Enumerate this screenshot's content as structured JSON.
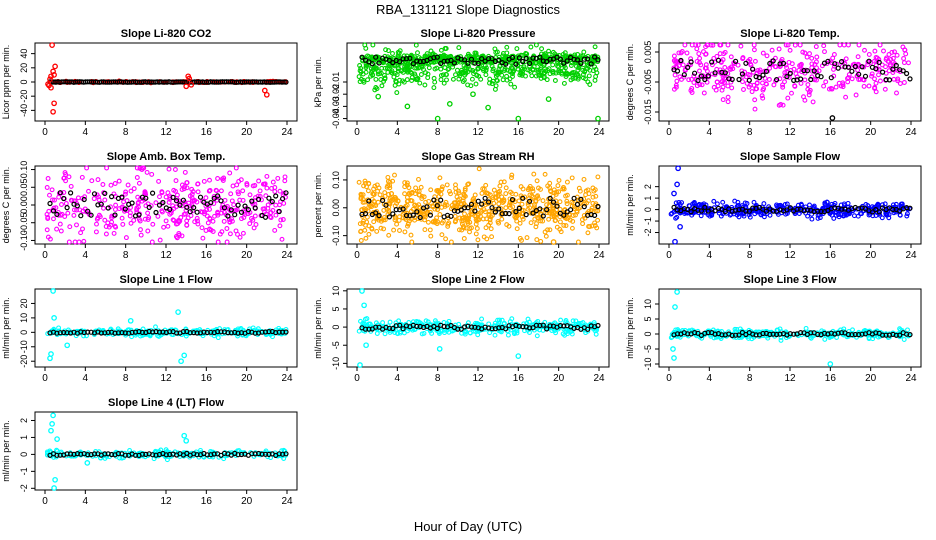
{
  "figure": {
    "title": "RBA_131121  Slope Diagnostics",
    "xlabel": "Hour of Day (UTC)"
  },
  "chart_data": [
    {
      "type": "scatter",
      "title": "Slope Li-820 CO2",
      "ylabel": "Licor ppm per min.",
      "color": "#ff0000",
      "xlim": [
        0,
        24
      ],
      "ylim": [
        -55,
        55
      ],
      "xticks": [
        "0",
        "4",
        "8",
        "12",
        "16",
        "20",
        "24"
      ],
      "yticks": [
        {
          "v": -40,
          "label": "-40"
        },
        {
          "v": -20,
          "label": "-20"
        },
        {
          "v": 0,
          "label": "0"
        },
        {
          "v": 20,
          "label": "20"
        },
        {
          "v": 40,
          "label": "40"
        }
      ],
      "series": [
        {
          "name": "slopes",
          "color": "#ff0000",
          "x": [
            0.3,
            0.4,
            0.5,
            0.6,
            0.7,
            0.8,
            0.9,
            1.0,
            0.8,
            0.9,
            0.6,
            14.0,
            14.2,
            14.3,
            14.5,
            21.8,
            22.0
          ],
          "y": [
            -3,
            -5,
            4,
            8,
            52,
            -42,
            -30,
            22,
            15,
            10,
            -8,
            -6,
            8,
            5,
            -4,
            -12,
            -18
          ]
        }
      ]
    },
    {
      "type": "scatter",
      "title": "Slope Li-820 Pressure",
      "ylabel": "kPa per min.",
      "color": "#00d000",
      "xlim": [
        0,
        24
      ],
      "ylim": [
        -0.042,
        0.022
      ],
      "xticks": [
        "0",
        "4",
        "8",
        "12",
        "16",
        "20",
        "24"
      ],
      "yticks": [
        {
          "v": -0.04,
          "label": "-0.04"
        },
        {
          "v": -0.03,
          "label": "-0.03"
        },
        {
          "v": -0.02,
          "label": "-0.02"
        },
        {
          "v": -0.01,
          "label": "-0.01"
        }
      ],
      "series": [
        {
          "name": "outliers",
          "color": "#00d000",
          "x": [
            2.1,
            5.0,
            8.0,
            9.2,
            11.5,
            13.0,
            16.0,
            19.0,
            23.9
          ],
          "y": [
            -0.022,
            -0.03,
            -0.04,
            -0.028,
            -0.02,
            -0.031,
            -0.04,
            -0.024,
            -0.04
          ]
        }
      ]
    },
    {
      "type": "scatter",
      "title": "Slope Li-820 Temp.",
      "ylabel": "degrees C per min.",
      "color": "#ff00ff",
      "xlim": [
        0,
        24
      ],
      "ylim": [
        -0.018,
        0.008
      ],
      "xticks": [
        "0",
        "4",
        "8",
        "12",
        "16",
        "20",
        "24"
      ],
      "yticks": [
        {
          "v": -0.015,
          "label": "-0.015"
        },
        {
          "v": -0.005,
          "label": "-0.005"
        },
        {
          "v": 0.005,
          "label": "0.005"
        }
      ],
      "series": [
        {
          "name": "outliers",
          "color": "#000000",
          "x": [
            16.2
          ],
          "y": [
            -0.017
          ]
        }
      ]
    },
    {
      "type": "scatter",
      "title": "Slope Amb. Box Temp.",
      "ylabel": "degrees C per min.",
      "color": "#ff00ff",
      "xlim": [
        0,
        24
      ],
      "ylim": [
        -0.11,
        0.11
      ],
      "xticks": [
        "0",
        "4",
        "8",
        "12",
        "16",
        "20",
        "24"
      ],
      "yticks": [
        {
          "v": -0.1,
          "label": "-0.10"
        },
        {
          "v": -0.05,
          "label": "-0.05"
        },
        {
          "v": 0,
          "label": "0.00"
        },
        {
          "v": 0.05,
          "label": "0.05"
        },
        {
          "v": 0.1,
          "label": "0.10"
        }
      ],
      "series": []
    },
    {
      "type": "scatter",
      "title": "Slope Gas Stream RH",
      "ylabel": "percent per min.",
      "color": "#ffa500",
      "xlim": [
        0,
        24
      ],
      "ylim": [
        -0.13,
        0.15
      ],
      "xticks": [
        "0",
        "4",
        "8",
        "12",
        "16",
        "20",
        "24"
      ],
      "yticks": [
        {
          "v": -0.1,
          "label": "-0.10"
        },
        {
          "v": 0,
          "label": "0.00"
        },
        {
          "v": 0.1,
          "label": "0.10"
        }
      ],
      "series": [
        {
          "name": "outliers",
          "color": "#ffa500",
          "x": [
            19.5
          ],
          "y": [
            -0.13
          ]
        }
      ]
    },
    {
      "type": "scatter",
      "title": "Slope Sample Flow",
      "ylabel": "ml/min per min.",
      "color": "#0000ff",
      "xlim": [
        0,
        24
      ],
      "ylim": [
        -3.0,
        3.8
      ],
      "xticks": [
        "0",
        "4",
        "8",
        "12",
        "16",
        "20",
        "24"
      ],
      "yticks": [
        {
          "v": -2,
          "label": "-2"
        },
        {
          "v": -1,
          "label": "-1"
        },
        {
          "v": 0,
          "label": "0"
        },
        {
          "v": 1,
          "label": "1"
        },
        {
          "v": 2,
          "label": "2"
        }
      ],
      "series": [
        {
          "name": "outliers",
          "color": "#0000ff",
          "x": [
            0.9,
            0.6,
            0.8,
            1.1,
            0.5
          ],
          "y": [
            3.6,
            -2.8,
            2.2,
            -1.5,
            1.4
          ]
        }
      ]
    },
    {
      "type": "scatter",
      "title": "Slope Line 1 Flow",
      "ylabel": "ml/min per min.",
      "color": "#00ffff",
      "xlim": [
        0,
        24
      ],
      "ylim": [
        -24,
        30
      ],
      "xticks": [
        "0",
        "4",
        "8",
        "12",
        "16",
        "20",
        "24"
      ],
      "yticks": [
        {
          "v": -20,
          "label": "-20"
        },
        {
          "v": -10,
          "label": "-10"
        },
        {
          "v": 0,
          "label": "0"
        },
        {
          "v": 10,
          "label": "10"
        },
        {
          "v": 20,
          "label": "20"
        }
      ],
      "series": [
        {
          "name": "outliers",
          "color": "#00ffff",
          "x": [
            0.8,
            0.6,
            0.5,
            0.9,
            13.5,
            13.8,
            13.2,
            2.2,
            8.5
          ],
          "y": [
            29,
            -15,
            -18,
            10,
            -20,
            -16,
            14,
            -9,
            8
          ]
        }
      ]
    },
    {
      "type": "scatter",
      "title": "Slope Line 2 Flow",
      "ylabel": "ml/min per min.",
      "color": "#00ffff",
      "xlim": [
        0,
        24
      ],
      "ylim": [
        -11,
        10.5
      ],
      "xticks": [
        "0",
        "4",
        "8",
        "12",
        "16",
        "20",
        "24"
      ],
      "yticks": [
        {
          "v": -10,
          "label": "-10"
        },
        {
          "v": -5,
          "label": "-5"
        },
        {
          "v": 0,
          "label": "0"
        },
        {
          "v": 5,
          "label": "5"
        },
        {
          "v": 10,
          "label": "10"
        }
      ],
      "series": [
        {
          "name": "outliers",
          "color": "#00ffff",
          "x": [
            0.5,
            0.3,
            0.7,
            8.2,
            16.0,
            0.9
          ],
          "y": [
            10,
            -10.5,
            6,
            -6,
            -8,
            -5
          ]
        }
      ]
    },
    {
      "type": "scatter",
      "title": "Slope Line 3 Flow",
      "ylabel": "ml/min per min.",
      "color": "#00ffff",
      "xlim": [
        0,
        24
      ],
      "ylim": [
        -11,
        15
      ],
      "xticks": [
        "0",
        "4",
        "8",
        "12",
        "16",
        "20",
        "24"
      ],
      "yticks": [
        {
          "v": -10,
          "label": "-10"
        },
        {
          "v": -5,
          "label": "-5"
        },
        {
          "v": 0,
          "label": "0"
        },
        {
          "v": 5,
          "label": "5"
        },
        {
          "v": 10,
          "label": "10"
        }
      ],
      "series": [
        {
          "name": "outliers",
          "color": "#00ffff",
          "x": [
            0.8,
            0.6,
            0.5,
            16.0,
            0.4
          ],
          "y": [
            14,
            9,
            -8,
            -10,
            -5
          ]
        }
      ]
    },
    {
      "type": "scatter",
      "title": "Slope Line 4 (LT) Flow",
      "ylabel": "ml/min per min.",
      "color": "#00ffff",
      "xlim": [
        0,
        24
      ],
      "ylim": [
        -2.1,
        2.5
      ],
      "xticks": [
        "0",
        "4",
        "8",
        "12",
        "16",
        "20",
        "24"
      ],
      "yticks": [
        {
          "v": -2,
          "label": "-2"
        },
        {
          "v": -1,
          "label": "-1"
        },
        {
          "v": 0,
          "label": "0"
        },
        {
          "v": 1,
          "label": "1"
        },
        {
          "v": 2,
          "label": "2"
        }
      ],
      "series": [
        {
          "name": "outliers",
          "color": "#00ffff",
          "x": [
            0.8,
            0.7,
            0.9,
            0.6,
            1.0,
            13.8,
            14.0,
            4.2,
            1.2
          ],
          "y": [
            2.3,
            1.8,
            -2.0,
            1.4,
            -1.5,
            1.1,
            0.8,
            -0.5,
            0.9
          ]
        }
      ]
    }
  ]
}
